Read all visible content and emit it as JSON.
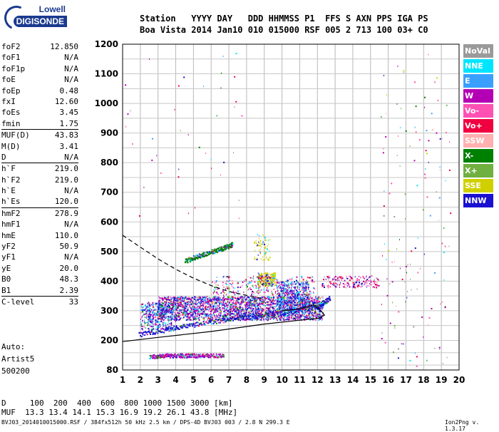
{
  "logo": {
    "top": "Lowell",
    "bottom": "DIGISONDE"
  },
  "header": {
    "line1": "Station   YYYY DAY   DDD HHMMSS P1  FFS S AXN PPS IGA PS",
    "line2": "Boa Vista 2014 Jan10 010 015000 RSF 005 2 713 100 03+ C0"
  },
  "params": [
    {
      "k": "foF2",
      "v": "12.850"
    },
    {
      "k": "foF1",
      "v": "N/A"
    },
    {
      "k": "foF1p",
      "v": "N/A"
    },
    {
      "k": "foE",
      "v": "N/A"
    },
    {
      "k": "foEp",
      "v": "0.48"
    },
    {
      "k": "fxI",
      "v": "12.60"
    },
    {
      "k": "foEs",
      "v": "3.45"
    },
    {
      "k": "fmin",
      "v": "1.75",
      "sepAfter": true
    },
    {
      "k": "MUF(D)",
      "v": "43.83"
    },
    {
      "k": "M(D)",
      "v": "3.41"
    },
    {
      "k": "D",
      "v": "N/A",
      "sepAfter": true
    },
    {
      "k": "h`F",
      "v": "219.0"
    },
    {
      "k": "h`F2",
      "v": "219.0"
    },
    {
      "k": "h`E",
      "v": "N/A"
    },
    {
      "k": "h`Es",
      "v": "120.0",
      "sepAfter": true
    },
    {
      "k": "hmF2",
      "v": "278.9"
    },
    {
      "k": "hmF1",
      "v": "N/A"
    },
    {
      "k": "hmE",
      "v": "110.0"
    },
    {
      "k": "yF2",
      "v": "50.9"
    },
    {
      "k": "yF1",
      "v": "N/A"
    },
    {
      "k": "yE",
      "v": "20.0"
    },
    {
      "k": "B0",
      "v": "48.3"
    },
    {
      "k": "B1",
      "v": "2.39",
      "sepAfter": true
    },
    {
      "k": "C-level",
      "v": "33",
      "sepAfter": true
    }
  ],
  "auto": {
    "line1": "Auto:",
    "line2": "Artist5",
    "line3": "500200"
  },
  "legend": [
    {
      "label": "NoVal",
      "color": "#9a9a9a"
    },
    {
      "label": "NNE",
      "color": "#00e5ff"
    },
    {
      "label": "E",
      "color": "#3aa0ff"
    },
    {
      "label": "W",
      "color": "#b400b4"
    },
    {
      "label": "Vo-",
      "color": "#ff50b4"
    },
    {
      "label": "Vo+",
      "color": "#f00040"
    },
    {
      "label": "SSW",
      "color": "#ffb0b0"
    },
    {
      "label": "X-",
      "color": "#008000"
    },
    {
      "label": "X+",
      "color": "#70b040"
    },
    {
      "label": "SSE",
      "color": "#d0d000"
    },
    {
      "label": "NNW",
      "color": "#1a10d0"
    }
  ],
  "footer": {
    "row1": "D     100  200  400  600  800 1000 1500 3000 [km]",
    "row2": "MUF  13.3 13.4 14.1 15.3 16.9 19.2 26.1 43.8 [MHz]",
    "row3": "BVJ03_2014010015000.RSF / 384fx512h 50 kHz 2.5 km / DPS-4D BVJ03 003 / 2.8 N 299.3 E",
    "version": "Ion2Png v. 1.3.17"
  },
  "chart_data": {
    "type": "scatter",
    "xlim": [
      1,
      20
    ],
    "ylim": [
      80,
      1200
    ],
    "x_ticks": [
      1,
      2,
      3,
      4,
      5,
      6,
      7,
      8,
      9,
      10,
      11,
      12,
      13,
      14,
      15,
      16,
      17,
      18,
      19,
      20
    ],
    "y_ticks": [
      80,
      200,
      300,
      400,
      500,
      600,
      700,
      800,
      900,
      1000,
      1100,
      1200
    ],
    "grid": true,
    "legend_position": "right",
    "traces": [
      {
        "name": "O-mode F2 trace",
        "color": "#1a10d0",
        "points": [
          [
            1.9,
            220
          ],
          [
            4,
            245
          ],
          [
            6,
            265
          ],
          [
            8,
            280
          ],
          [
            10,
            295
          ],
          [
            12,
            315
          ],
          [
            12.7,
            345
          ]
        ]
      },
      {
        "name": "Es layer",
        "color": "#b400b4",
        "points": [
          [
            2.5,
            135
          ],
          [
            3.5,
            140
          ],
          [
            4.5,
            140
          ],
          [
            5.5,
            140
          ],
          [
            6.7,
            140
          ]
        ]
      },
      {
        "name": "Multi-hop",
        "color": "#008000",
        "points": [
          [
            4.5,
            470
          ],
          [
            5.5,
            490
          ],
          [
            6.5,
            510
          ],
          [
            7.2,
            525
          ]
        ]
      }
    ],
    "profile_solid": [
      [
        1,
        195
      ],
      [
        3,
        210
      ],
      [
        6,
        230
      ],
      [
        9,
        255
      ],
      [
        11,
        268
      ],
      [
        12.1,
        275
      ],
      [
        12.4,
        285
      ],
      [
        12.2,
        300
      ],
      [
        11.8,
        320
      ],
      [
        10.9,
        305
      ],
      [
        10,
        300
      ]
    ],
    "profile_dashed": [
      [
        1,
        555
      ],
      [
        2,
        515
      ],
      [
        3,
        475
      ],
      [
        4,
        440
      ],
      [
        5,
        410
      ],
      [
        6,
        385
      ],
      [
        7,
        365
      ],
      [
        8,
        352
      ],
      [
        9,
        340
      ]
    ]
  }
}
